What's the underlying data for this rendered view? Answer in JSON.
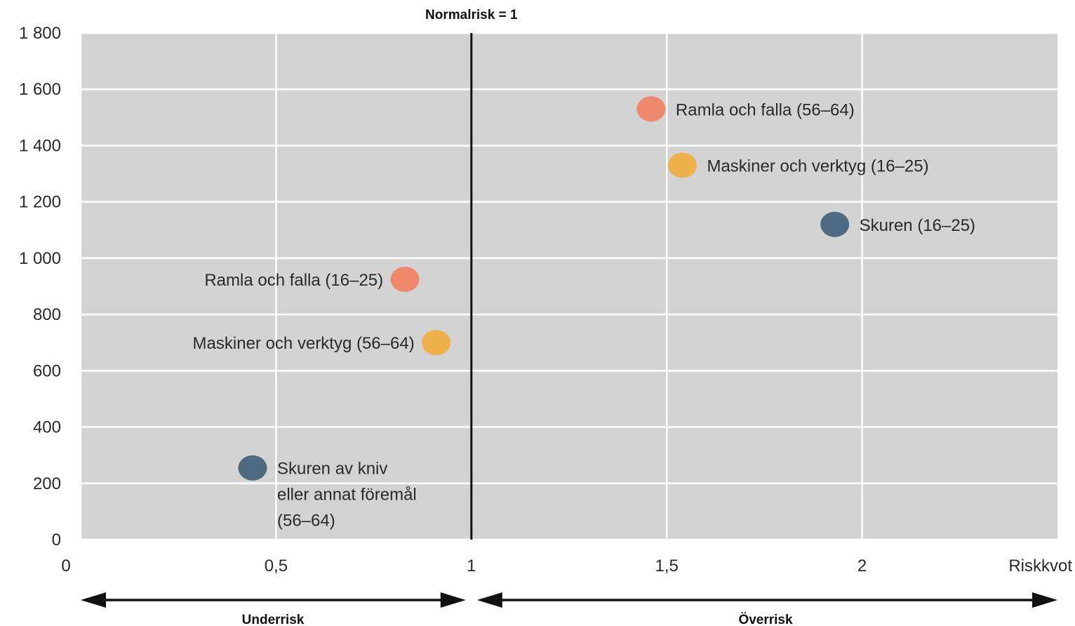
{
  "chart_data": {
    "type": "scatter",
    "title": "",
    "xlabel": "Riskkvot",
    "ylabel": "",
    "xlim": [
      0,
      2.5
    ],
    "ylim": [
      0,
      1800
    ],
    "x_ticks": [
      "0",
      "0,5",
      "1",
      "1,5",
      "2"
    ],
    "y_ticks": [
      "0",
      "200",
      "400",
      "600",
      "800",
      "1 000",
      "1 200",
      "1 400",
      "1 600",
      "1 800"
    ],
    "grid": true,
    "reference_line": {
      "x": 1,
      "label": "Normalrisk = 1"
    },
    "ranges": [
      {
        "label": "Underrisk",
        "from": 0,
        "to": 1
      },
      {
        "label": "Överrisk",
        "from": 1,
        "to": 2.5
      }
    ],
    "colors": {
      "falls": "#f0896c",
      "machines": "#efb14a",
      "cuts": "#4f6b82",
      "background": "#d4d3d4"
    },
    "points": [
      {
        "label": "Ramla och falla (56–64)",
        "x": 1.46,
        "y": 1530,
        "color": "#f0896c",
        "label_side": "right"
      },
      {
        "label": "Maskiner och verktyg (16–25)",
        "x": 1.54,
        "y": 1330,
        "color": "#efb14a",
        "label_side": "right"
      },
      {
        "label": "Skuren (16–25)",
        "x": 1.93,
        "y": 1120,
        "color": "#4f6b82",
        "label_side": "right"
      },
      {
        "label": "Ramla och falla (16–25)",
        "x": 0.83,
        "y": 925,
        "color": "#f0896c",
        "label_side": "left"
      },
      {
        "label": "Maskiner och verktyg (56–64)",
        "x": 0.91,
        "y": 700,
        "color": "#efb14a",
        "label_side": "left"
      },
      {
        "label": "Skuren av kniv\neller annat föremål\n(56–64)",
        "x": 0.44,
        "y": 255,
        "color": "#4f6b82",
        "label_side": "right"
      }
    ]
  }
}
